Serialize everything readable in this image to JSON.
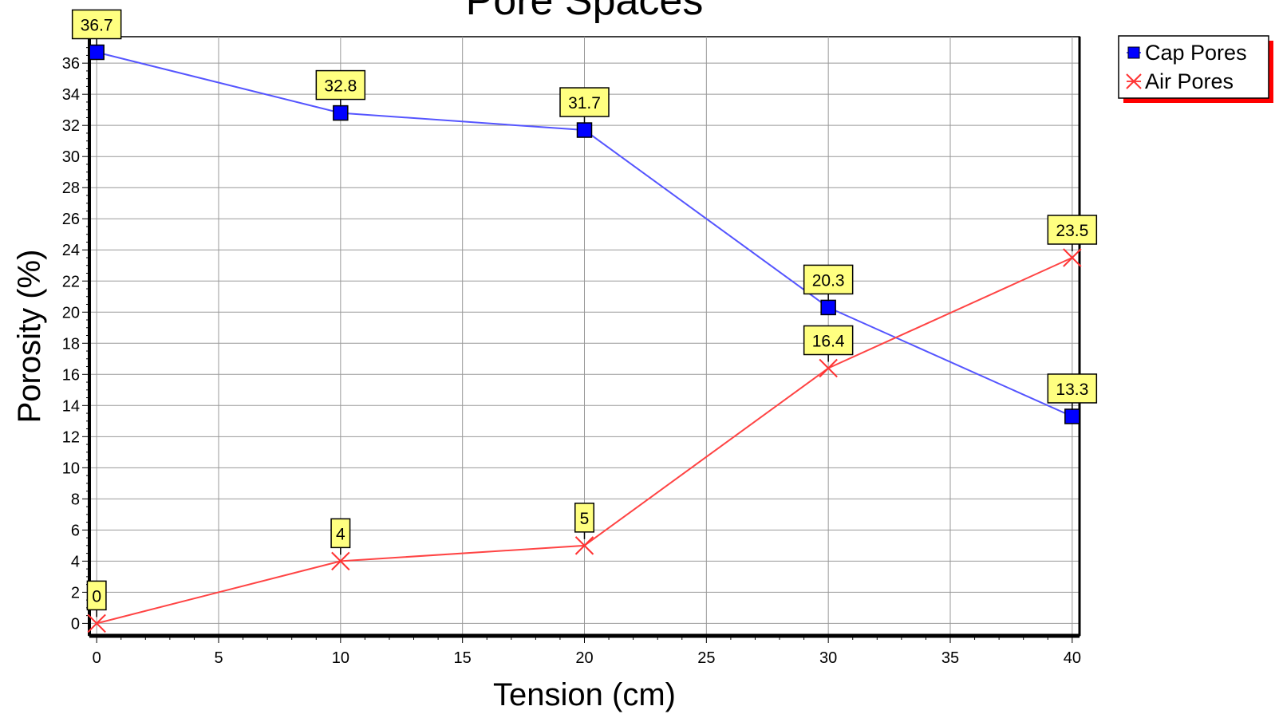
{
  "chart_data": {
    "type": "line",
    "title": "Pore Spaces",
    "xlabel": "Tension (cm)",
    "ylabel": "Porosity (%)",
    "x": [
      0,
      10,
      20,
      30,
      40
    ],
    "xlim": [
      -0.3,
      40.3
    ],
    "ylim": [
      -0.8,
      37.7
    ],
    "x_ticks": [
      0,
      5,
      10,
      15,
      20,
      25,
      30,
      35,
      40
    ],
    "y_ticks": [
      0,
      2,
      4,
      6,
      8,
      10,
      12,
      14,
      16,
      18,
      20,
      22,
      24,
      26,
      28,
      30,
      32,
      34,
      36
    ],
    "grid": true,
    "legend_position": "outside-top-right",
    "series": [
      {
        "name": "Cap Pores",
        "values": [
          36.7,
          32.8,
          31.7,
          20.3,
          13.3
        ],
        "labels": [
          "36.7",
          "32.8",
          "31.7",
          "20.3",
          "13.3"
        ],
        "color": "#0000ff",
        "line_color": "#5555ff",
        "marker": "square"
      },
      {
        "name": "Air Pores",
        "values": [
          0,
          4,
          5,
          16.4,
          23.5
        ],
        "labels": [
          "0",
          "4",
          "5",
          "16.4",
          "23.5"
        ],
        "color": "#ff3333",
        "line_color": "#ff4444",
        "marker": "x"
      }
    ],
    "label_box_color": "#ffff80"
  }
}
